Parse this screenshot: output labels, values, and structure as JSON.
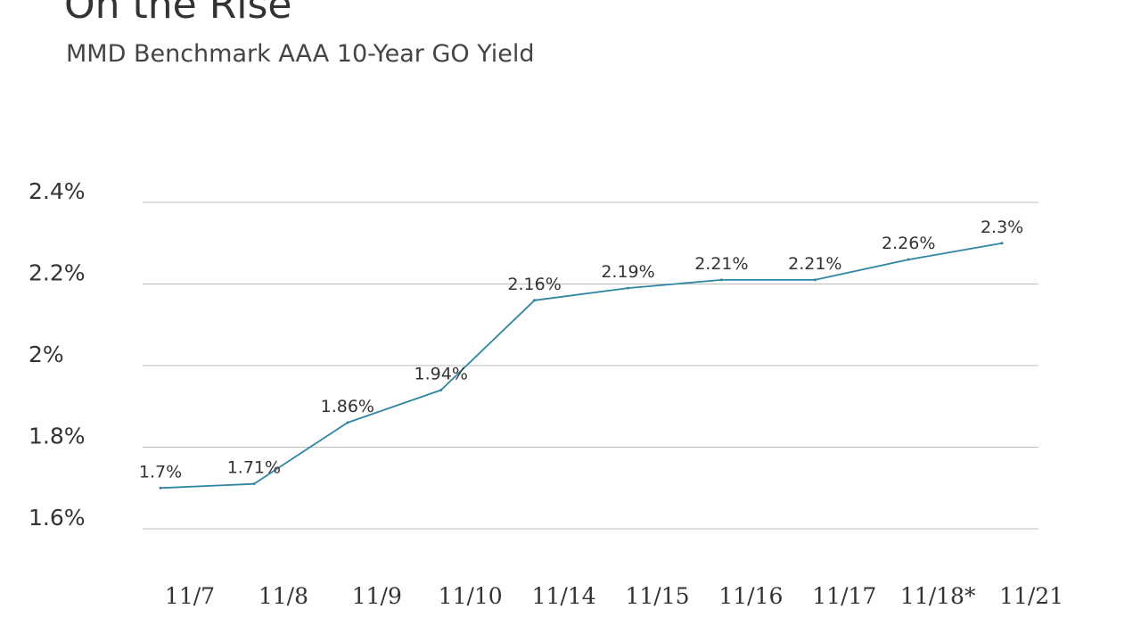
{
  "header": {
    "title": "On the Rise",
    "subtitle": "MMD Benchmark AAA 10-Year GO Yield"
  },
  "colors": {
    "line": "#2f86a3",
    "grid": "#bdbdbd",
    "text": "#333333"
  },
  "chart_data": {
    "type": "line",
    "title": "On the Rise",
    "subtitle": "MMD Benchmark AAA 10-Year GO Yield",
    "categories": [
      "11/7",
      "11/8",
      "11/9",
      "11/10",
      "11/14",
      "11/15",
      "11/16",
      "11/17",
      "11/18*",
      "11/21"
    ],
    "series": [
      {
        "values": [
          1.7,
          1.71,
          1.86,
          1.94,
          2.16,
          2.19,
          2.21,
          2.21,
          2.26,
          2.3
        ],
        "data_labels": [
          "1.7%",
          "1.71%",
          "1.86%",
          "1.94%",
          "2.16%",
          "2.19%",
          "2.21%",
          "2.21%",
          "2.26%",
          "2.3%"
        ]
      }
    ],
    "ylim": [
      1.6,
      2.4
    ],
    "yticks": [
      1.6,
      1.8,
      2.0,
      2.2,
      2.4
    ],
    "ytick_labels": [
      "1.6%",
      "1.8%",
      "2%",
      "2.2%",
      "2.4%"
    ],
    "grid": true,
    "legend": "none"
  }
}
